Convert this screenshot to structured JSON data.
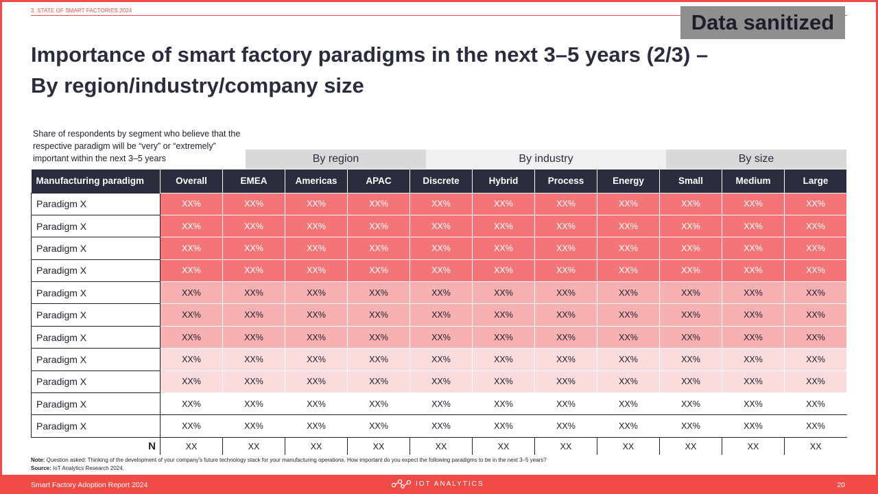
{
  "header": {
    "section": "3. STATE OF SMART FACTORIES 2024",
    "badge": "Data sanitized",
    "title_line1": "Importance of smart factory paradigms in the next 3–5 years (2/3) –",
    "title_line2": "By region/industry/company size",
    "subtitle": "Share of respondents by segment who believe that the respective paradigm will be “very” or “extremely” important within the next 3–5 years"
  },
  "groups": {
    "region": "By region",
    "industry": "By industry",
    "size": "By size"
  },
  "table": {
    "columns": [
      "Manufacturing paradigm",
      "Overall",
      "EMEA",
      "Americas",
      "APAC",
      "Discrete",
      "Hybrid",
      "Process",
      "Energy",
      "Small",
      "Medium",
      "Large"
    ],
    "rows": [
      {
        "label": "Paradigm X",
        "values": [
          "XX%",
          "XX%",
          "XX%",
          "XX%",
          "XX%",
          "XX%",
          "XX%",
          "XX%",
          "XX%",
          "XX%",
          "XX%"
        ]
      },
      {
        "label": "Paradigm X",
        "values": [
          "XX%",
          "XX%",
          "XX%",
          "XX%",
          "XX%",
          "XX%",
          "XX%",
          "XX%",
          "XX%",
          "XX%",
          "XX%"
        ]
      },
      {
        "label": "Paradigm X",
        "values": [
          "XX%",
          "XX%",
          "XX%",
          "XX%",
          "XX%",
          "XX%",
          "XX%",
          "XX%",
          "XX%",
          "XX%",
          "XX%"
        ]
      },
      {
        "label": "Paradigm X",
        "values": [
          "XX%",
          "XX%",
          "XX%",
          "XX%",
          "XX%",
          "XX%",
          "XX%",
          "XX%",
          "XX%",
          "XX%",
          "XX%"
        ]
      },
      {
        "label": "Paradigm X",
        "values": [
          "XX%",
          "XX%",
          "XX%",
          "XX%",
          "XX%",
          "XX%",
          "XX%",
          "XX%",
          "XX%",
          "XX%",
          "XX%"
        ]
      },
      {
        "label": "Paradigm X",
        "values": [
          "XX%",
          "XX%",
          "XX%",
          "XX%",
          "XX%",
          "XX%",
          "XX%",
          "XX%",
          "XX%",
          "XX%",
          "XX%"
        ]
      },
      {
        "label": "Paradigm X",
        "values": [
          "XX%",
          "XX%",
          "XX%",
          "XX%",
          "XX%",
          "XX%",
          "XX%",
          "XX%",
          "XX%",
          "XX%",
          "XX%"
        ]
      },
      {
        "label": "Paradigm X",
        "values": [
          "XX%",
          "XX%",
          "XX%",
          "XX%",
          "XX%",
          "XX%",
          "XX%",
          "XX%",
          "XX%",
          "XX%",
          "XX%"
        ]
      },
      {
        "label": "Paradigm X",
        "values": [
          "XX%",
          "XX%",
          "XX%",
          "XX%",
          "XX%",
          "XX%",
          "XX%",
          "XX%",
          "XX%",
          "XX%",
          "XX%"
        ]
      },
      {
        "label": "Paradigm X",
        "values": [
          "XX%",
          "XX%",
          "XX%",
          "XX%",
          "XX%",
          "XX%",
          "XX%",
          "XX%",
          "XX%",
          "XX%",
          "XX%"
        ]
      },
      {
        "label": "Paradigm X",
        "values": [
          "XX%",
          "XX%",
          "XX%",
          "XX%",
          "XX%",
          "XX%",
          "XX%",
          "XX%",
          "XX%",
          "XX%",
          "XX%"
        ]
      }
    ],
    "n_label": "N",
    "n_values": [
      "XX",
      "XX",
      "XX",
      "XX",
      "XX",
      "XX",
      "XX",
      "XX",
      "XX",
      "XX",
      "XX"
    ]
  },
  "colors": {
    "accent": "#f04b46",
    "header_bg": "#2b2d3e",
    "tier_high": "#f47578",
    "tier_mid": "#f7b1b3",
    "tier_low": "#fbdcdd"
  },
  "note": {
    "note_label": "Note:",
    "note_text": " Question asked: Thinking of the development of your company’s future technology stack for your manufacturing operations. How important do you expect the following paradigms to be in the next 3–5 years?",
    "source_label": "Source:",
    "source_text": " IoT Analytics Research 2024."
  },
  "footer": {
    "report": "Smart Factory Adoption Report 2024",
    "logo_text": "IOT ANALYTICS",
    "logo_icon": "iot-analytics-logo-icon",
    "page": "20"
  }
}
